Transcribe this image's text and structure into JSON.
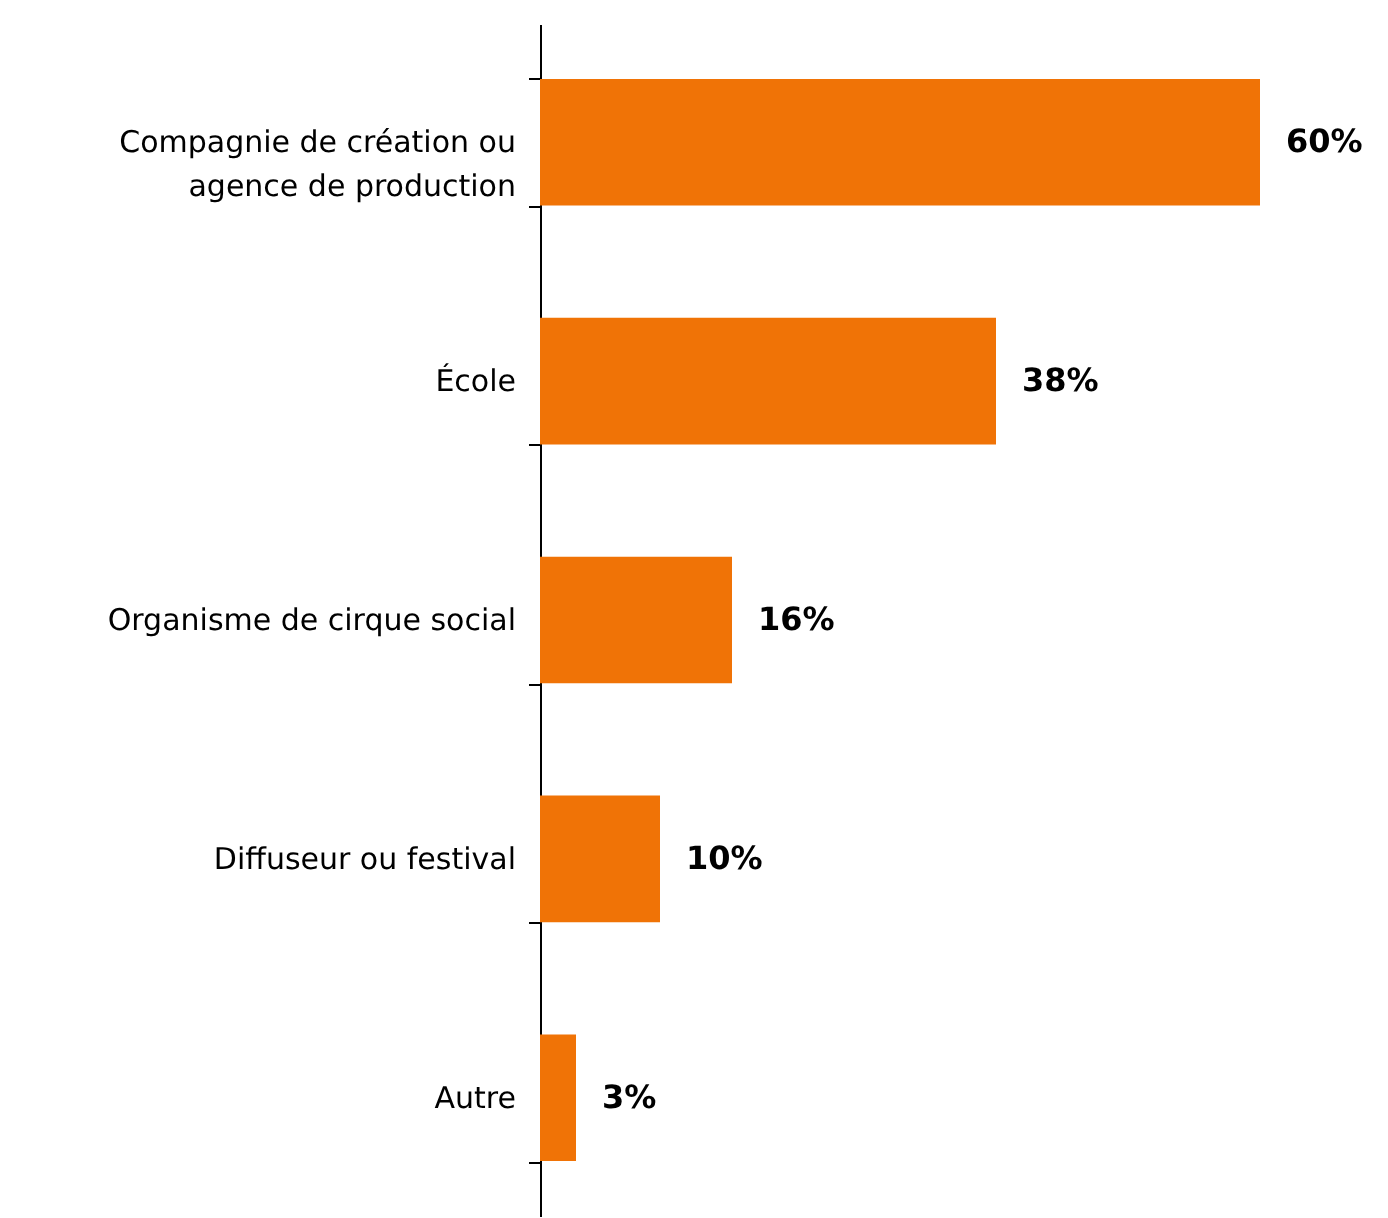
{
  "chart_data": {
    "type": "bar",
    "orientation": "horizontal",
    "categories": [
      "Compagnie de création ou agence de production",
      "École",
      "Organisme de cirque social",
      "Diffuseur ou festival",
      "Autre"
    ],
    "values": [
      60,
      38,
      16,
      10,
      3
    ],
    "value_labels": [
      "60%",
      "38%",
      "16%",
      "10%",
      "3%"
    ],
    "color": "#f07306"
  }
}
